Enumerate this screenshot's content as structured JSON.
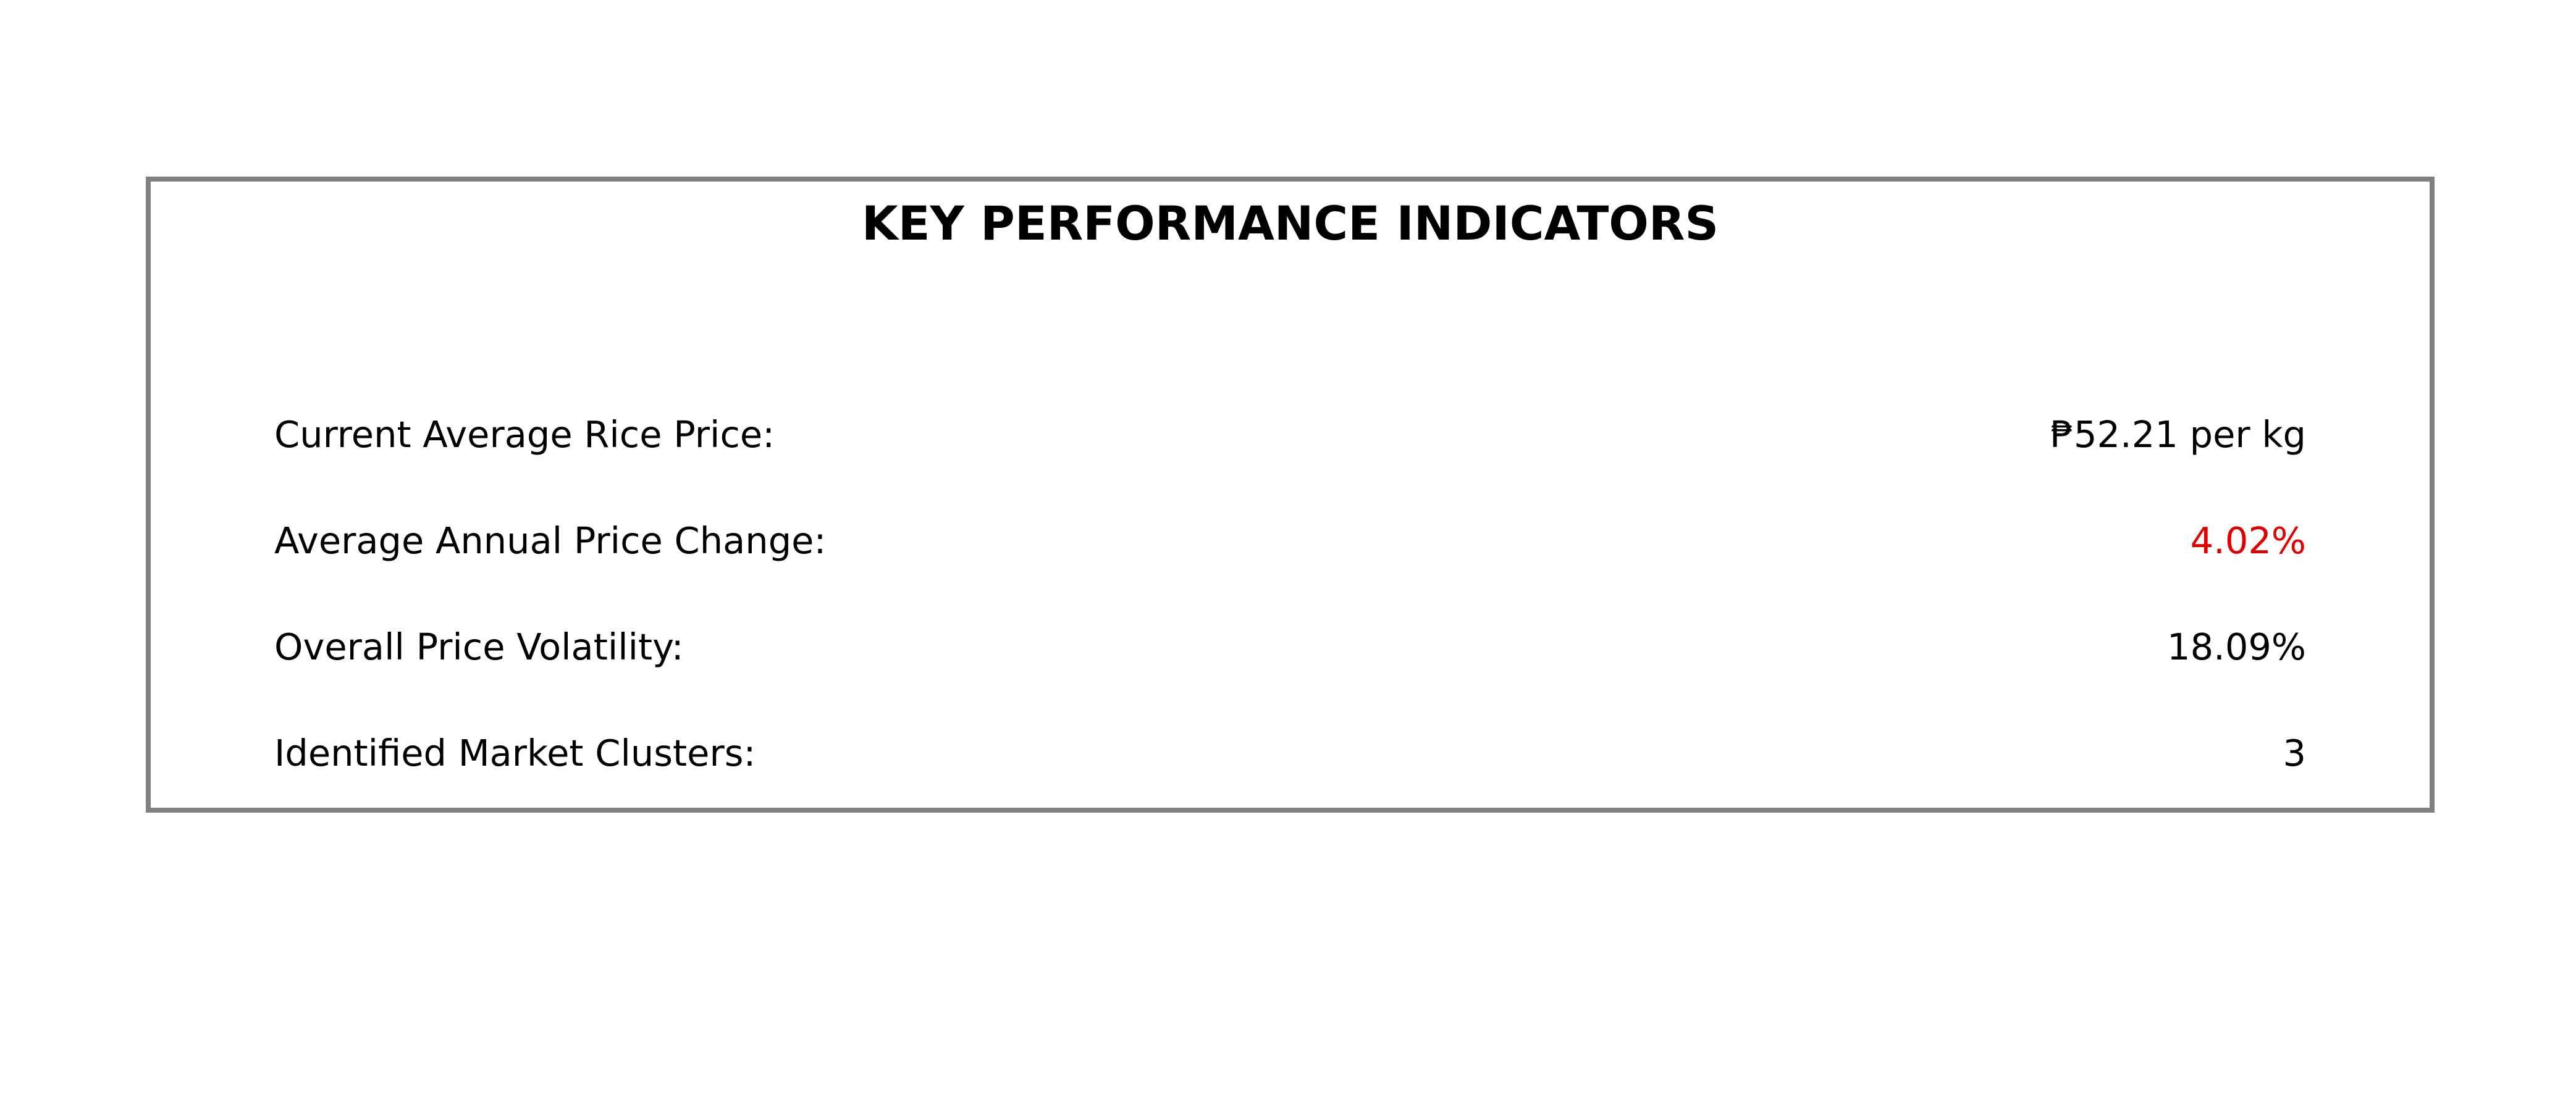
{
  "panel": {
    "title": "KEY PERFORMANCE INDICATORS"
  },
  "kpis": [
    {
      "label": "Current Average Rice Price:",
      "value": "₱52.21 per kg",
      "value_color": "#000000"
    },
    {
      "label": "Average Annual Price Change:",
      "value": "4.02%",
      "value_color": "#e00000"
    },
    {
      "label": "Overall Price Volatility:",
      "value": "18.09%",
      "value_color": "#000000"
    },
    {
      "label": "Identified Market Clusters:",
      "value": "3",
      "value_color": "#000000"
    }
  ]
}
